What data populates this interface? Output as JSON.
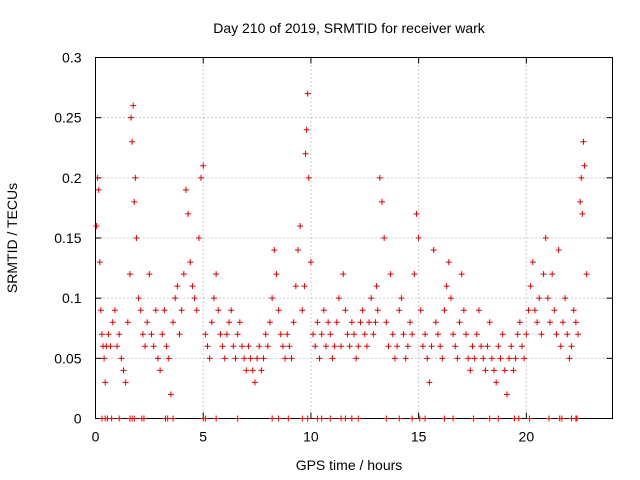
{
  "chart_data": {
    "type": "scatter",
    "title": "Day 210 of 2019, SRMTID for receiver wark",
    "xlabel": "GPS time / hours",
    "ylabel": "SRMTID / TECUs",
    "xlim": [
      0,
      24
    ],
    "ylim": [
      0,
      0.3
    ],
    "grid": true,
    "marker": "+",
    "color": "#e00000",
    "xticks": [
      {
        "value": 0,
        "label": "0"
      },
      {
        "value": 5,
        "label": "5"
      },
      {
        "value": 10,
        "label": "10"
      },
      {
        "value": 15,
        "label": "15"
      },
      {
        "value": 20,
        "label": "20"
      }
    ],
    "yticks": [
      {
        "value": 0,
        "label": "0"
      },
      {
        "value": 0.05,
        "label": "0.05"
      },
      {
        "value": 0.1,
        "label": "0.1"
      },
      {
        "value": 0.15,
        "label": "0.15"
      },
      {
        "value": 0.2,
        "label": "0.2"
      },
      {
        "value": 0.25,
        "label": "0.25"
      },
      {
        "value": 0.3,
        "label": "0.3"
      }
    ],
    "series": [
      {
        "name": "SRMTID",
        "x": [
          0.05,
          0.1,
          0.15,
          0.2,
          0.25,
          0.3,
          0.35,
          0.4,
          0.45,
          0.5,
          0.6,
          0.7,
          0.8,
          0.9,
          1.0,
          1.1,
          1.2,
          1.3,
          1.4,
          1.5,
          1.6,
          1.65,
          1.7,
          1.75,
          1.8,
          1.85,
          1.9,
          2.0,
          2.1,
          2.2,
          2.3,
          2.4,
          2.5,
          2.6,
          2.7,
          2.8,
          2.9,
          3.0,
          3.1,
          3.2,
          3.3,
          3.4,
          3.5,
          3.6,
          3.7,
          3.8,
          3.9,
          4.0,
          4.1,
          4.2,
          4.3,
          4.4,
          4.5,
          4.6,
          4.7,
          4.8,
          4.9,
          5.0,
          5.1,
          5.2,
          5.3,
          5.4,
          5.5,
          5.6,
          5.7,
          5.8,
          5.9,
          6.0,
          6.1,
          6.2,
          6.3,
          6.4,
          6.5,
          6.6,
          6.7,
          6.8,
          6.9,
          7.0,
          7.1,
          7.2,
          7.3,
          7.4,
          7.5,
          7.6,
          7.7,
          7.8,
          7.9,
          8.0,
          8.1,
          8.2,
          8.3,
          8.4,
          8.5,
          8.6,
          8.7,
          8.8,
          8.9,
          9.0,
          9.1,
          9.2,
          9.3,
          9.4,
          9.5,
          9.6,
          9.7,
          9.75,
          9.8,
          9.85,
          9.9,
          10.0,
          10.1,
          10.2,
          10.3,
          10.4,
          10.5,
          10.6,
          10.7,
          10.8,
          10.9,
          11.0,
          11.1,
          11.2,
          11.3,
          11.4,
          11.5,
          11.6,
          11.7,
          11.8,
          11.9,
          12.0,
          12.1,
          12.2,
          12.3,
          12.4,
          12.5,
          12.6,
          12.7,
          12.8,
          12.9,
          13.0,
          13.05,
          13.1,
          13.2,
          13.3,
          13.4,
          13.5,
          13.6,
          13.7,
          13.8,
          13.9,
          14.0,
          14.1,
          14.2,
          14.3,
          14.4,
          14.5,
          14.6,
          14.7,
          14.8,
          14.9,
          15.0,
          15.1,
          15.2,
          15.3,
          15.4,
          15.5,
          15.6,
          15.7,
          15.8,
          15.9,
          16.0,
          16.1,
          16.2,
          16.3,
          16.4,
          16.5,
          16.6,
          16.7,
          16.8,
          16.9,
          17.0,
          17.1,
          17.2,
          17.3,
          17.4,
          17.5,
          17.6,
          17.7,
          17.8,
          17.9,
          18.0,
          18.1,
          18.2,
          18.3,
          18.4,
          18.5,
          18.6,
          18.7,
          18.8,
          18.9,
          19.0,
          19.1,
          19.2,
          19.3,
          19.4,
          19.5,
          19.6,
          19.7,
          19.8,
          19.9,
          20.0,
          20.1,
          20.2,
          20.3,
          20.4,
          20.5,
          20.6,
          20.7,
          20.8,
          20.9,
          21.0,
          21.1,
          21.2,
          21.3,
          21.4,
          21.5,
          21.6,
          21.7,
          21.8,
          21.9,
          22.0,
          22.1,
          22.2,
          22.3,
          22.4,
          22.5,
          22.55,
          22.6,
          22.65,
          22.7,
          22.8
        ],
        "y": [
          0.16,
          0.2,
          0.19,
          0.13,
          0.09,
          0.07,
          0.06,
          0.05,
          0.03,
          0.06,
          0.07,
          0.06,
          0.08,
          0.09,
          0.06,
          0.07,
          0.05,
          0.04,
          0.03,
          0.08,
          0.12,
          0.25,
          0.23,
          0.26,
          0.18,
          0.2,
          0.15,
          0.1,
          0.09,
          0.07,
          0.06,
          0.08,
          0.12,
          0.07,
          0.06,
          0.09,
          0.05,
          0.04,
          0.07,
          0.09,
          0.06,
          0.05,
          0.02,
          0.08,
          0.1,
          0.11,
          0.07,
          0.09,
          0.12,
          0.19,
          0.17,
          0.13,
          0.11,
          0.1,
          0.09,
          0.15,
          0.2,
          0.21,
          0.07,
          0.06,
          0.05,
          0.08,
          0.1,
          0.12,
          0.09,
          0.07,
          0.06,
          0.05,
          0.07,
          0.08,
          0.09,
          0.06,
          0.05,
          0.07,
          0.08,
          0.06,
          0.05,
          0.04,
          0.06,
          0.05,
          0.04,
          0.03,
          0.05,
          0.06,
          0.04,
          0.05,
          0.07,
          0.06,
          0.08,
          0.1,
          0.14,
          0.12,
          0.09,
          0.07,
          0.06,
          0.05,
          0.07,
          0.06,
          0.05,
          0.08,
          0.11,
          0.14,
          0.16,
          0.09,
          0.11,
          0.22,
          0.24,
          0.27,
          0.2,
          0.13,
          0.07,
          0.06,
          0.08,
          0.05,
          0.07,
          0.09,
          0.06,
          0.08,
          0.07,
          0.05,
          0.06,
          0.08,
          0.1,
          0.06,
          0.12,
          0.09,
          0.07,
          0.06,
          0.08,
          0.07,
          0.05,
          0.06,
          0.08,
          0.09,
          0.07,
          0.06,
          0.08,
          0.1,
          0.07,
          0.08,
          0.11,
          0.09,
          0.2,
          0.18,
          0.15,
          0.08,
          0.06,
          0.12,
          0.07,
          0.05,
          0.06,
          0.09,
          0.1,
          0.07,
          0.05,
          0.06,
          0.08,
          0.07,
          0.12,
          0.17,
          0.15,
          0.09,
          0.06,
          0.07,
          0.05,
          0.03,
          0.06,
          0.14,
          0.08,
          0.07,
          0.06,
          0.05,
          0.09,
          0.11,
          0.13,
          0.1,
          0.07,
          0.06,
          0.05,
          0.08,
          0.12,
          0.09,
          0.07,
          0.05,
          0.04,
          0.06,
          0.05,
          0.07,
          0.09,
          0.06,
          0.05,
          0.04,
          0.06,
          0.08,
          0.05,
          0.04,
          0.03,
          0.06,
          0.05,
          0.07,
          0.04,
          0.02,
          0.05,
          0.06,
          0.04,
          0.05,
          0.07,
          0.08,
          0.06,
          0.05,
          0.07,
          0.09,
          0.11,
          0.13,
          0.09,
          0.08,
          0.1,
          0.07,
          0.12,
          0.15,
          0.1,
          0.08,
          0.12,
          0.09,
          0.07,
          0.14,
          0.06,
          0.08,
          0.1,
          0.07,
          0.05,
          0.06,
          0.09,
          0.08,
          0.07,
          0.18,
          0.2,
          0.17,
          0.23,
          0.21,
          0.12
        ]
      }
    ],
    "baseline_marks": [
      0.3,
      0.45,
      0.55,
      0.75,
      1.1,
      1.6,
      1.7,
      1.8,
      2.15,
      2.25,
      3.25,
      3.35,
      3.6,
      5.0,
      5.1,
      5.6,
      6.6,
      8.2,
      8.5,
      8.95,
      9.6,
      9.85,
      10.3,
      10.5,
      10.9,
      11.4,
      11.6,
      11.9,
      12.2,
      13.5,
      14.1,
      14.7,
      15.05,
      15.3,
      16.2,
      16.6,
      17.55,
      18.3,
      18.7,
      19.45,
      19.65,
      20.15,
      21.05,
      21.55,
      21.65,
      22.1,
      22.3,
      22.35
    ]
  }
}
